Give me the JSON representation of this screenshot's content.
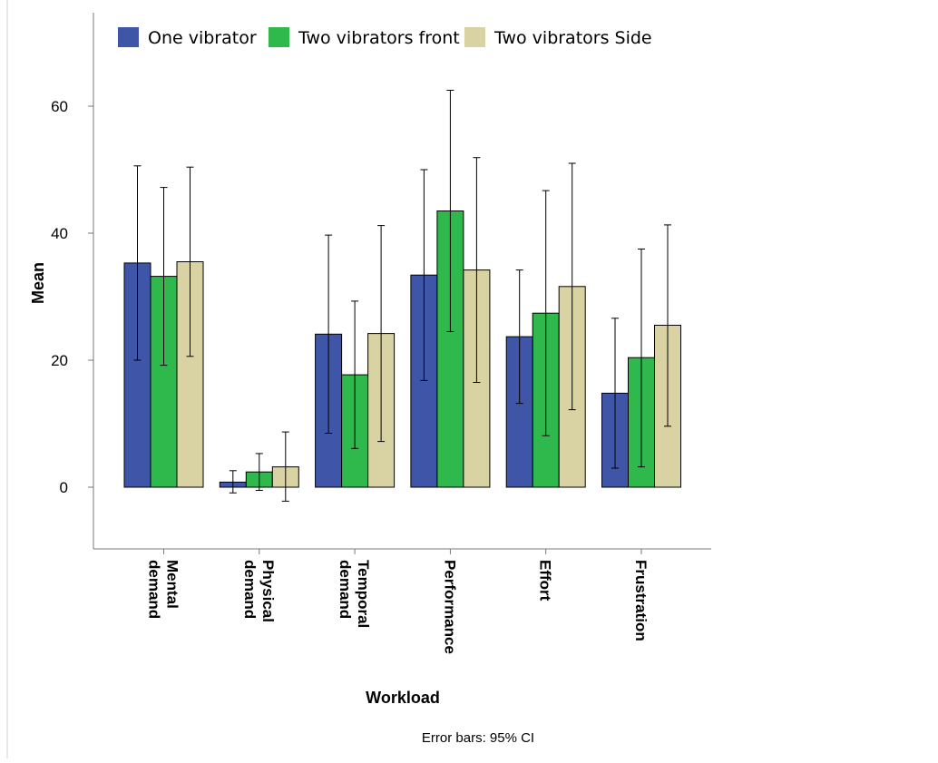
{
  "chart_data": {
    "type": "bar",
    "categories": [
      [
        "Mental",
        "demand"
      ],
      [
        "Physical",
        "demand"
      ],
      [
        "Temporal",
        "demand"
      ],
      [
        "Performance"
      ],
      [
        "Effort"
      ],
      [
        "Frustration"
      ]
    ],
    "series": [
      {
        "name": "One vibrator",
        "color": "#3f56a8",
        "values": [
          35.3,
          0.8,
          24.1,
          33.4,
          23.7,
          14.8
        ],
        "ci_low": [
          20.0,
          -0.9,
          8.5,
          16.8,
          13.2,
          3.0
        ],
        "ci_high": [
          50.6,
          2.6,
          39.7,
          50.0,
          34.2,
          26.6
        ]
      },
      {
        "name": "Two vibrators front",
        "color": "#2fb84b",
        "values": [
          33.2,
          2.4,
          17.7,
          43.5,
          27.4,
          20.4
        ],
        "ci_low": [
          19.2,
          -0.5,
          6.1,
          24.5,
          8.1,
          3.2
        ],
        "ci_high": [
          47.2,
          5.3,
          29.3,
          62.5,
          46.7,
          37.5
        ]
      },
      {
        "name": "Two vibrators Side",
        "color": "#d9d3a3",
        "values": [
          35.5,
          3.2,
          24.2,
          34.2,
          31.6,
          25.5
        ],
        "ci_low": [
          20.6,
          -2.2,
          7.2,
          16.5,
          12.2,
          9.6
        ],
        "ci_high": [
          50.4,
          8.7,
          41.2,
          51.9,
          51.0,
          41.3
        ]
      }
    ],
    "yticks": [
      "0",
      "20",
      "40",
      "60"
    ],
    "ytick_values": [
      0,
      20,
      40,
      60
    ],
    "ylim": [
      -10,
      70
    ],
    "ylabel": "Mean",
    "xlabel": "Workload",
    "legend_position": "top",
    "footnote": "Error bars: 95% CI",
    "grid": false
  }
}
